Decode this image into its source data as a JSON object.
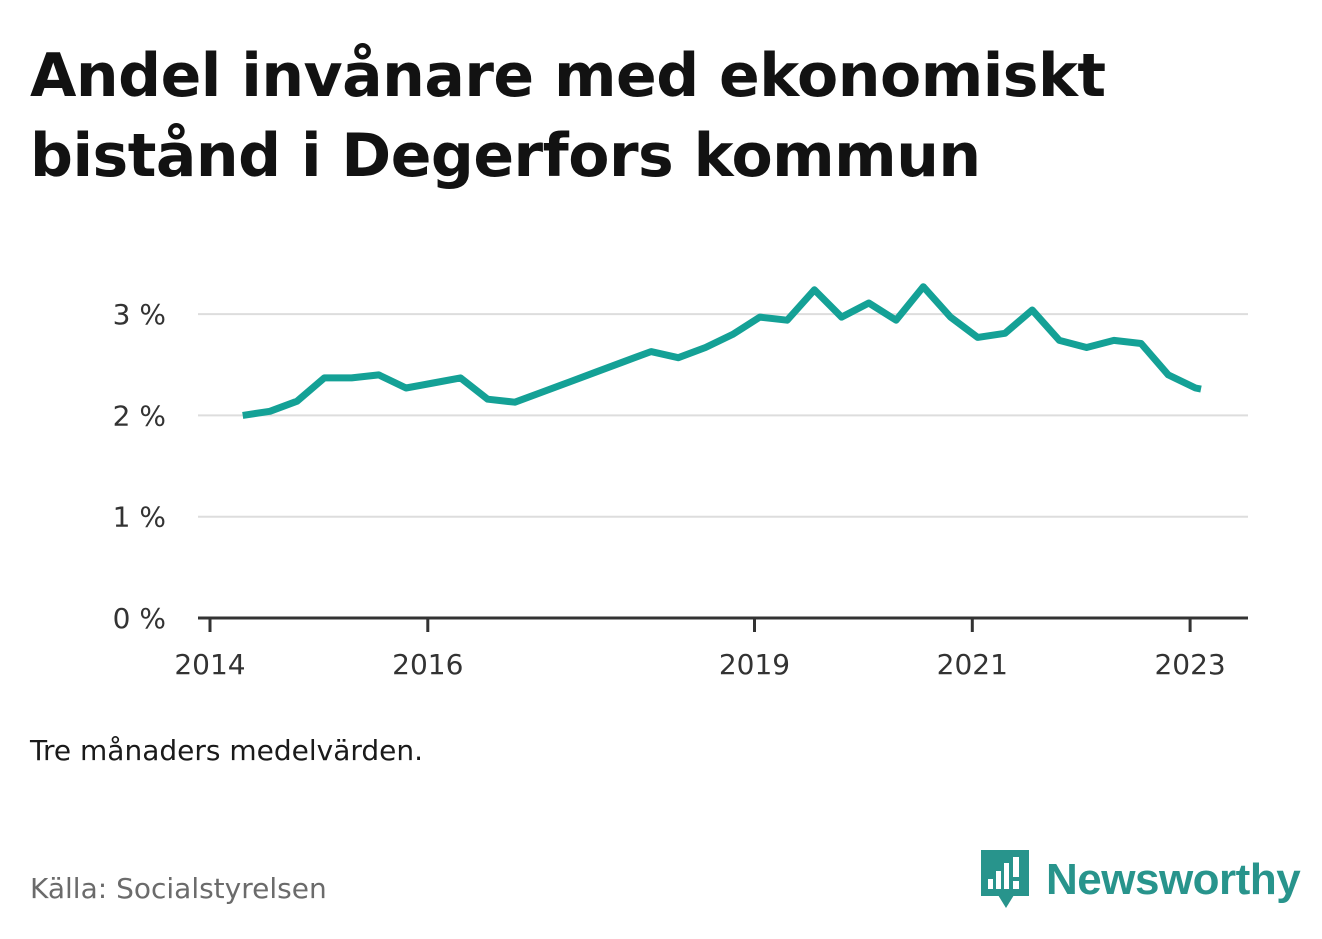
{
  "title": "Andel invånare med ekonomiskt bistånd i Degerfors kommun",
  "note": "Tre månaders medelvärden.",
  "source": "Källa: Socialstyrelsen",
  "brand": "Newsworthy",
  "colors": {
    "line": "#14a196",
    "brand": "#28948c",
    "grid": "#dddddd",
    "axis": "#333333"
  },
  "icons": {
    "brand_logo": "bar-chart-speech-bubble-icon"
  },
  "chart_data": {
    "type": "line",
    "title": "Andel invånare med ekonomiskt bistånd i Degerfors kommun",
    "xlabel": "",
    "ylabel": "",
    "ylim": [
      0,
      3.4
    ],
    "xlim": [
      2014,
      2023.5
    ],
    "grid": true,
    "legend": "none",
    "y_ticks": [
      {
        "value": 0,
        "label": "0 %"
      },
      {
        "value": 1,
        "label": "1 %"
      },
      {
        "value": 2,
        "label": "2 %"
      },
      {
        "value": 3,
        "label": "3 %"
      }
    ],
    "x_ticks": [
      {
        "value": 2014,
        "label": "2014"
      },
      {
        "value": 2016,
        "label": "2016"
      },
      {
        "value": 2019,
        "label": "2019"
      },
      {
        "value": 2021,
        "label": "2021"
      },
      {
        "value": 2023,
        "label": "2023"
      }
    ],
    "x": [
      2014.3,
      2014.55,
      2014.8,
      2015.05,
      2015.3,
      2015.55,
      2015.8,
      2016.05,
      2016.3,
      2016.55,
      2016.8,
      2017.05,
      2017.3,
      2017.55,
      2017.8,
      2018.05,
      2018.3,
      2018.55,
      2018.8,
      2019.05,
      2019.3,
      2019.55,
      2019.8,
      2020.05,
      2020.3,
      2020.55,
      2020.8,
      2021.05,
      2021.3,
      2021.55,
      2021.8,
      2022.05,
      2022.3,
      2022.55,
      2022.8,
      2023.05,
      2023.1
    ],
    "y": [
      2.0,
      2.04,
      2.14,
      2.37,
      2.37,
      2.4,
      2.27,
      2.32,
      2.37,
      2.16,
      2.13,
      2.23,
      2.33,
      2.43,
      2.53,
      2.63,
      2.57,
      2.67,
      2.8,
      2.97,
      2.94,
      3.24,
      2.97,
      3.11,
      2.94,
      3.27,
      2.97,
      2.77,
      2.81,
      3.04,
      2.74,
      2.67,
      2.74,
      2.71,
      2.4,
      2.27,
      2.26
    ],
    "series": [
      {
        "name": "",
        "color": "#14a196"
      }
    ]
  }
}
